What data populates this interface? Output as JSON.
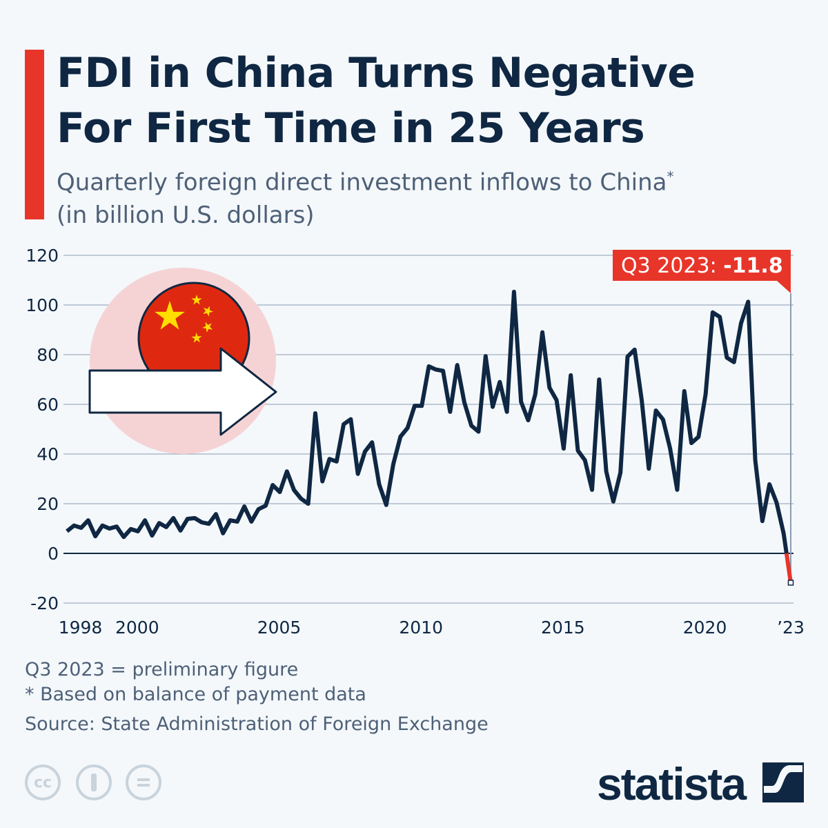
{
  "header": {
    "title_line1": "FDI in China Turns Negative",
    "title_line2": "For First Time in 25 Years",
    "subtitle_line1": "Quarterly foreign direct investment inflows to China",
    "subtitle_asterisk": "*",
    "subtitle_line2": "(in billion U.S. dollars)"
  },
  "colors": {
    "line": "#0f2742",
    "accent": "#e8352a",
    "grid": "#8a9bb0",
    "text": "#4e6077",
    "illustration_bg": "#f5d3d5",
    "flag_red": "#de2910",
    "flag_yellow": "#ffde00"
  },
  "illustration": {
    "icons": [
      "china-flag-icon",
      "arrow-right-icon"
    ]
  },
  "chart_data": {
    "type": "line",
    "title": "FDI in China Turns Negative For First Time in 25 Years",
    "subtitle": "Quarterly foreign direct investment inflows to China* (in billion U.S. dollars)",
    "x_start": "Q1 1998",
    "x_end": "Q3 2023",
    "frequency": "quarterly",
    "ylim": [
      -20,
      120
    ],
    "yticks": [
      120,
      100,
      80,
      60,
      40,
      20,
      0,
      -20
    ],
    "xticks": [
      {
        "label": "1998",
        "year": 1998
      },
      {
        "label": "2000",
        "year": 2000
      },
      {
        "label": "2005",
        "year": 2005
      },
      {
        "label": "2010",
        "year": 2010
      },
      {
        "label": "2015",
        "year": 2015
      },
      {
        "label": "2020",
        "year": 2020
      },
      {
        "label": "’23",
        "year": 2023
      }
    ],
    "grid": true,
    "values": [
      8.9,
      11.2,
      10.3,
      13.3,
      6.9,
      11.2,
      10.0,
      10.8,
      6.6,
      9.8,
      8.9,
      13.3,
      7.2,
      12.2,
      10.6,
      14.2,
      9.2,
      13.9,
      14.2,
      12.5,
      11.9,
      15.8,
      8.1,
      13.3,
      12.8,
      18.9,
      12.8,
      17.8,
      19.2,
      27.5,
      24.7,
      33.0,
      25.5,
      22.0,
      20.0,
      56.4,
      29.0,
      38.0,
      37.0,
      52.0,
      54.0,
      32.0,
      41.0,
      44.7,
      27.8,
      19.5,
      36.0,
      47.0,
      50.5,
      59.4,
      59.4,
      75.3,
      74.0,
      73.5,
      57.0,
      75.8,
      60.8,
      51.4,
      49.0,
      79.4,
      59.0,
      69.0,
      57.0,
      105.3,
      61.0,
      53.6,
      64.0,
      89.0,
      66.7,
      61.7,
      42.2,
      71.7,
      41.4,
      37.5,
      25.6,
      70.0,
      33.0,
      20.9,
      32.5,
      79.2,
      82.0,
      61.7,
      34.1,
      57.5,
      53.9,
      42.2,
      25.6,
      65.3,
      44.4,
      46.9,
      64.0,
      97.0,
      95.2,
      78.8,
      77.0,
      92.7,
      101.3,
      37.5,
      13.0,
      27.8,
      20.5,
      8.0,
      -11.8
    ],
    "annotation": {
      "label": "Q3 2023: ",
      "value": "-11.8"
    }
  },
  "footer": {
    "note1": "Q3 2023 = preliminary figure",
    "note2": "* Based on balance of payment data",
    "source": "Source: State Administration of Foreign Exchange",
    "license_icons": [
      "cc-icon",
      "attribution-icon",
      "no-derivatives-icon"
    ],
    "cc_text": "cc",
    "brand": "statista"
  }
}
